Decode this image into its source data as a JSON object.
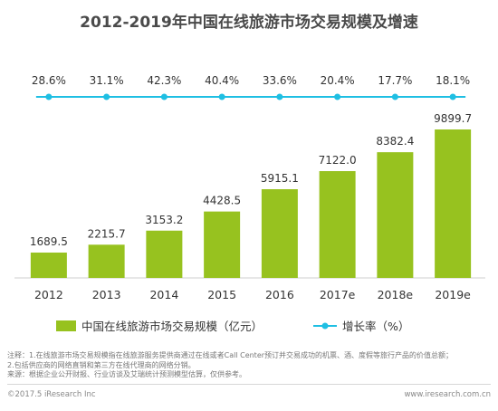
{
  "title": "2012-2019年中国在线旅游市场交易规模及增速",
  "colors": {
    "bar": "#97c21f",
    "line": "#1fbfe3",
    "text": "#333333",
    "title": "#4a4a4a"
  },
  "chart_data": {
    "type": "bar",
    "categories": [
      "2012",
      "2013",
      "2014",
      "2015",
      "2016",
      "2017e",
      "2018e",
      "2019e"
    ],
    "series": [
      {
        "name": "中国在线旅游市场交易规模（亿元）",
        "type": "bar",
        "values": [
          1689.5,
          2215.7,
          3153.2,
          4428.5,
          5915.1,
          7122.0,
          8382.4,
          9899.7
        ],
        "labels": [
          "1689.5",
          "2215.7",
          "3153.2",
          "4428.5",
          "5915.1",
          "7122.0",
          "8382.4",
          "9899.7"
        ]
      },
      {
        "name": "增长率（%）",
        "type": "line",
        "values": [
          28.6,
          31.1,
          42.3,
          40.4,
          33.6,
          20.4,
          17.7,
          18.1
        ],
        "labels": [
          "28.6%",
          "31.1%",
          "42.3%",
          "40.4%",
          "33.6%",
          "20.4%",
          "17.7%",
          "18.1%"
        ]
      }
    ],
    "legend_position": "bottom"
  },
  "notes": [
    "注释：1.在线旅游市场交易规模指在线旅游服务提供商通过在线或者Call Center预订并交易成功的机票、酒、度假等旅行产品的价值总额；",
    "2.包括供应商的网络直销和第三方在线代理商的网络分销。",
    "来源：根据企业公开财报、行业访谈及艾瑞统计预测模型估算，仅供参考。"
  ],
  "footer": {
    "copyright": "©2017.5 iResearch Inc",
    "website": "www.iresearch.com.cn"
  }
}
